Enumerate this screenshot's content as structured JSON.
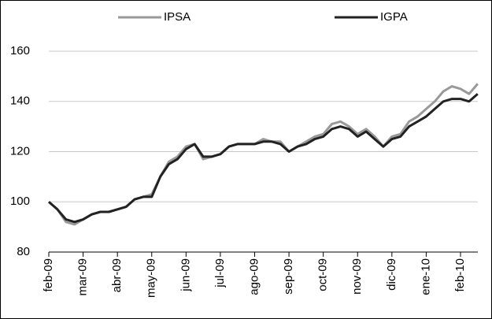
{
  "chart_data": {
    "type": "line",
    "categories": [
      "feb-09",
      null,
      null,
      null,
      "mar-09",
      null,
      null,
      null,
      "abr-09",
      null,
      null,
      null,
      "may-09",
      null,
      null,
      null,
      "jun-09",
      null,
      null,
      null,
      "jul-09",
      null,
      null,
      null,
      "ago-09",
      null,
      null,
      null,
      "sep-09",
      null,
      null,
      null,
      "oct-09",
      null,
      null,
      null,
      "nov-09",
      null,
      null,
      null,
      "dic-09",
      null,
      null,
      null,
      "ene-10",
      null,
      null,
      null,
      "feb-10",
      null,
      null
    ],
    "series": [
      {
        "name": "IPSA",
        "color": "#999999",
        "values": [
          100,
          97,
          92,
          91,
          93,
          95,
          96,
          96,
          97,
          98,
          101,
          102,
          103,
          110,
          116,
          118,
          122,
          123,
          117,
          118,
          119,
          122,
          123,
          123,
          123,
          125,
          124,
          124,
          120,
          122,
          124,
          126,
          127,
          131,
          132,
          130,
          127,
          129,
          126,
          122,
          126,
          127,
          132,
          134,
          137,
          140,
          144,
          146,
          145,
          143,
          147
        ]
      },
      {
        "name": "IGPA",
        "color": "#222222",
        "values": [
          100,
          97,
          93,
          92,
          93,
          95,
          96,
          96,
          97,
          98,
          101,
          102,
          102,
          110,
          115,
          117,
          121,
          123,
          118,
          118,
          119,
          122,
          123,
          123,
          123,
          124,
          124,
          123,
          120,
          122,
          123,
          125,
          126,
          129,
          130,
          129,
          126,
          128,
          125,
          122,
          125,
          126,
          130,
          132,
          134,
          137,
          140,
          141,
          141,
          140,
          143
        ]
      }
    ],
    "ylim": [
      80,
      180
    ],
    "yticks": [
      80,
      100,
      120,
      140,
      160
    ],
    "grid": true
  }
}
